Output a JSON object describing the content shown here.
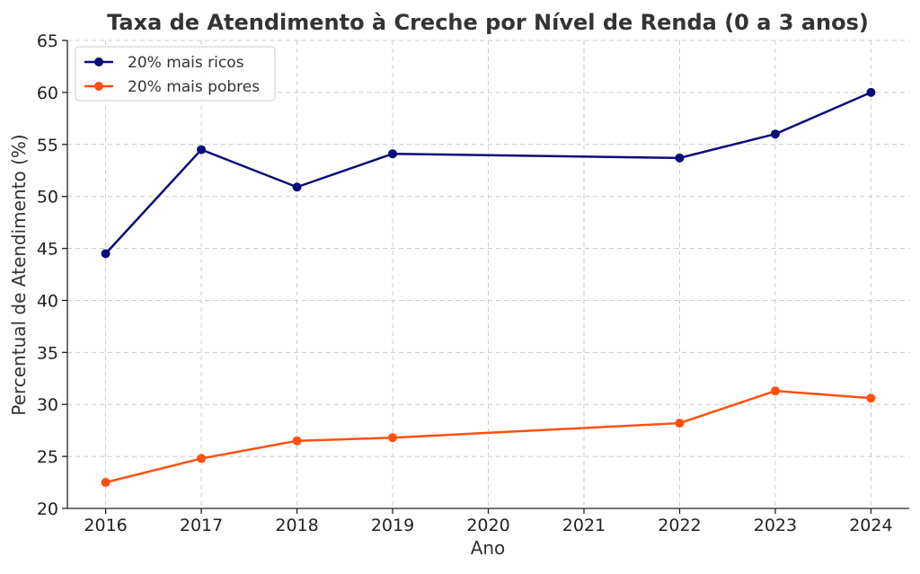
{
  "chart_data": {
    "type": "line",
    "title": "Taxa de Atendimento à Creche por Nível de Renda (0 a 3 anos)",
    "xlabel": "Ano",
    "ylabel": "Percentual de Atendimento (%)",
    "xlim": [
      2015.6,
      2024.4
    ],
    "ylim": [
      20,
      65
    ],
    "x_ticks": [
      2016,
      2017,
      2018,
      2019,
      2020,
      2021,
      2022,
      2023,
      2024
    ],
    "y_ticks": [
      20,
      25,
      30,
      35,
      40,
      45,
      50,
      55,
      60,
      65
    ],
    "grid": true,
    "legend_position": "top-left",
    "series": [
      {
        "name": "20% mais ricos",
        "color": "#0b0b7a",
        "x": [
          2016,
          2017,
          2018,
          2019,
          2022,
          2023,
          2024
        ],
        "values": [
          44.5,
          54.5,
          50.9,
          54.1,
          53.7,
          56.0,
          60.0
        ]
      },
      {
        "name": "20% mais pobres",
        "color": "#ff5010",
        "x": [
          2016,
          2017,
          2018,
          2019,
          2022,
          2023,
          2024
        ],
        "values": [
          22.5,
          24.8,
          26.5,
          26.8,
          28.2,
          31.3,
          30.6
        ]
      }
    ]
  }
}
